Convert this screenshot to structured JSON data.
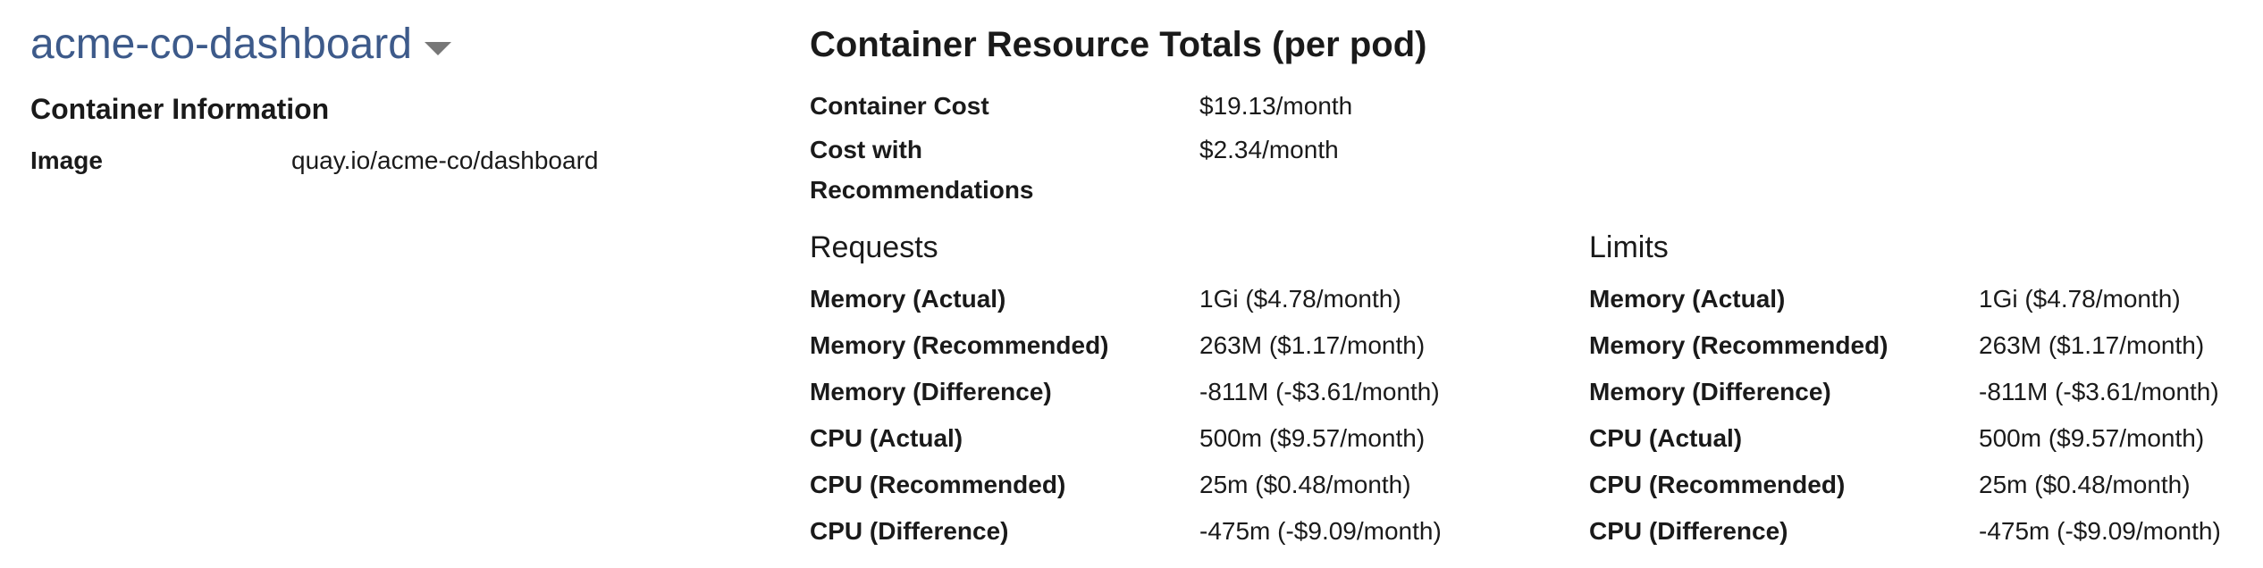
{
  "container": {
    "name": "acme-co-dashboard",
    "dropdown_icon": "caret-down-icon",
    "info_heading": "Container Information",
    "image_label": "Image",
    "image_value": "quay.io/acme-co/dashboard"
  },
  "totals": {
    "title": "Container Resource Totals (per pod)",
    "cost_label": "Container Cost",
    "cost_value": "$19.13/month",
    "recommended_cost_label": "Cost with Recommendations",
    "recommended_cost_value": "$2.34/month"
  },
  "requests": {
    "heading": "Requests",
    "rows": [
      {
        "label": "Memory (Actual)",
        "value": "1Gi ($4.78/month)"
      },
      {
        "label": "Memory (Recommended)",
        "value": "263M ($1.17/month)"
      },
      {
        "label": "Memory (Difference)",
        "value": "-811M (-$3.61/month)"
      },
      {
        "label": "CPU (Actual)",
        "value": "500m ($9.57/month)"
      },
      {
        "label": "CPU (Recommended)",
        "value": "25m ($0.48/month)"
      },
      {
        "label": "CPU (Difference)",
        "value": "-475m (-$9.09/month)"
      }
    ]
  },
  "limits": {
    "heading": "Limits",
    "rows": [
      {
        "label": "Memory (Actual)",
        "value": "1Gi ($4.78/month)"
      },
      {
        "label": "Memory (Recommended)",
        "value": "263M ($1.17/month)"
      },
      {
        "label": "Memory (Difference)",
        "value": "-811M (-$3.61/month)"
      },
      {
        "label": "CPU (Actual)",
        "value": "500m ($9.57/month)"
      },
      {
        "label": "CPU (Recommended)",
        "value": "25m ($0.48/month)"
      },
      {
        "label": "CPU (Difference)",
        "value": "-475m (-$9.09/month)"
      }
    ]
  }
}
